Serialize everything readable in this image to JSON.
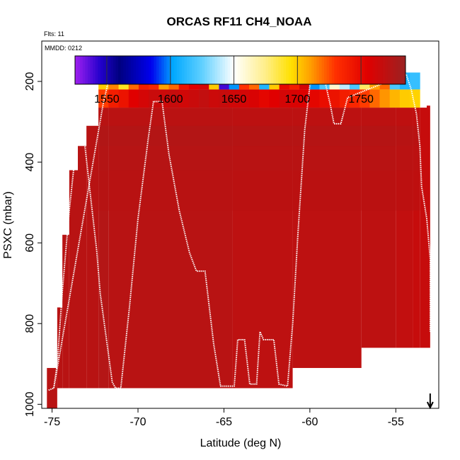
{
  "chart_data": {
    "type": "heatmap",
    "title": "ORCAS RF11 CH4_NOAA",
    "flights_label": "Flts: 11",
    "date_label": "MMDD: 0212",
    "xlabel": "Latitude (deg N)",
    "ylabel": "PSXC (mbar)",
    "xlim": [
      -75.6,
      -52.5
    ],
    "ylim": [
      1010,
      100
    ],
    "x_ticks": [
      -75,
      -70,
      -65,
      -60,
      -55
    ],
    "x_tick_labels": [
      "-75",
      "-70",
      "-65",
      "-60",
      "-55"
    ],
    "y_ticks": [
      200,
      400,
      600,
      800,
      1000
    ],
    "y_tick_labels": [
      "200",
      "400",
      "600",
      "800",
      "1000"
    ],
    "colorbar": {
      "range": [
        1525,
        1785
      ],
      "ticks": [
        1550,
        1600,
        1650,
        1700,
        1750
      ],
      "tick_labels": [
        "1550",
        "1600",
        "1650",
        "1700",
        "1750"
      ],
      "stops": [
        {
          "v": 1525,
          "c": "#a020f0"
        },
        {
          "v": 1545,
          "c": "#2200cc"
        },
        {
          "v": 1560,
          "c": "#000080"
        },
        {
          "v": 1585,
          "c": "#0000ee"
        },
        {
          "v": 1602,
          "c": "#00a8ff"
        },
        {
          "v": 1625,
          "c": "#60d0ff"
        },
        {
          "v": 1650,
          "c": "#ffffff"
        },
        {
          "v": 1675,
          "c": "#ffee88"
        },
        {
          "v": 1695,
          "c": "#ffe000"
        },
        {
          "v": 1710,
          "c": "#ffa000"
        },
        {
          "v": 1730,
          "c": "#ff3000"
        },
        {
          "v": 1755,
          "c": "#e00000"
        },
        {
          "v": 1785,
          "c": "#9a2222"
        }
      ]
    },
    "background_columns": [
      {
        "lat": [
          -75.3,
          -74.7
        ],
        "p": [
          910,
          1010
        ],
        "value": 1772
      },
      {
        "lat": [
          -74.7,
          -74.4
        ],
        "p": [
          760,
          960
        ],
        "value": 1772
      },
      {
        "lat": [
          -74.4,
          -74.0
        ],
        "p": [
          580,
          960
        ],
        "value": 1772
      },
      {
        "lat": [
          -74.0,
          -73.5
        ],
        "p": [
          420,
          960
        ],
        "value": 1772
      },
      {
        "lat": [
          -73.5,
          -73.0
        ],
        "p": [
          360,
          960
        ],
        "value": 1772
      },
      {
        "lat": [
          -73.0,
          -72.3
        ],
        "p": [
          310,
          960
        ],
        "value": 1772
      },
      {
        "lat": [
          -72.3,
          -71.7
        ],
        "p": [
          265,
          960
        ],
        "value": 1774
      },
      {
        "lat": [
          -71.7,
          -64.5
        ],
        "p": [
          265,
          960
        ],
        "value": 1772
      },
      {
        "lat": [
          -64.5,
          -61.0
        ],
        "p": [
          265,
          960
        ],
        "value": 1770
      },
      {
        "lat": [
          -61.0,
          -57.0
        ],
        "p": [
          265,
          910
        ],
        "value": 1770
      },
      {
        "lat": [
          -57.0,
          -55.0
        ],
        "p": [
          265,
          860
        ],
        "value": 1770
      },
      {
        "lat": [
          -55.0,
          -54.0
        ],
        "p": [
          265,
          860
        ],
        "value": 1768
      },
      {
        "lat": [
          -54.0,
          -53.6
        ],
        "p": [
          265,
          860
        ],
        "value": 1766
      },
      {
        "lat": [
          -53.6,
          -53.2
        ],
        "p": [
          265,
          860
        ],
        "value": 1766
      },
      {
        "lat": [
          -53.2,
          -53.0
        ],
        "p": [
          260,
          860
        ],
        "value": 1766
      }
    ],
    "band_rows": [
      {
        "p": [
          265,
          310
        ],
        "value": 1771
      },
      {
        "p": [
          310,
          360
        ],
        "value": 1776
      },
      {
        "p": [
          360,
          420
        ],
        "value": 1774
      },
      {
        "p": [
          420,
          520
        ],
        "value": 1772
      }
    ],
    "upper_band": {
      "lat_range": [
        -72.3,
        -53.6
      ],
      "row1_p": [
        220,
        265
      ],
      "row2_p": [
        178,
        220
      ],
      "row1_values": [
        1728,
        1740,
        1745,
        1755,
        1760,
        1765,
        1764,
        1766,
        1762,
        1765,
        1768,
        1764,
        1766,
        1762,
        1760,
        1758,
        1752,
        1755,
        1760,
        1758,
        1756,
        1752,
        1748,
        1745,
        1740,
        1735,
        1728,
        1720,
        1712,
        1705,
        1700,
        1698
      ],
      "row2_values": [
        1700,
        1715,
        1690,
        1720,
        1740,
        1735,
        1710,
        1720,
        1745,
        1755,
        1760,
        1700,
        1540,
        1600,
        1730,
        1720,
        1610,
        1700,
        1750,
        1740,
        1760,
        1600,
        1620,
        1660,
        1640,
        1620,
        1680,
        1710,
        1720,
        1620,
        1610,
        1615
      ]
    },
    "flight_track": [
      {
        "lat": -75.2,
        "p": 965
      },
      {
        "lat": -74.9,
        "p": 960
      },
      {
        "lat": -74.7,
        "p": 900
      },
      {
        "lat": -74.4,
        "p": 720
      },
      {
        "lat": -74.0,
        "p": 520
      },
      {
        "lat": -73.6,
        "p": 360
      },
      {
        "lat": -73.5,
        "p": 318
      },
      {
        "lat": -73.2,
        "p": 318
      },
      {
        "lat": -72.8,
        "p": 470
      },
      {
        "lat": -72.4,
        "p": 620
      },
      {
        "lat": -72.2,
        "p": 725
      },
      {
        "lat": -71.5,
        "p": 945
      },
      {
        "lat": -71.3,
        "p": 960
      },
      {
        "lat": -71.0,
        "p": 960
      },
      {
        "lat": -70.5,
        "p": 760
      },
      {
        "lat": -70.0,
        "p": 540
      },
      {
        "lat": -69.4,
        "p": 340
      },
      {
        "lat": -69.1,
        "p": 250
      },
      {
        "lat": -68.6,
        "p": 250
      },
      {
        "lat": -68.2,
        "p": 380
      },
      {
        "lat": -67.6,
        "p": 520
      },
      {
        "lat": -67.0,
        "p": 625
      },
      {
        "lat": -66.6,
        "p": 670
      },
      {
        "lat": -66.1,
        "p": 670
      },
      {
        "lat": -65.6,
        "p": 850
      },
      {
        "lat": -65.2,
        "p": 955
      },
      {
        "lat": -64.4,
        "p": 955
      },
      {
        "lat": -64.2,
        "p": 840
      },
      {
        "lat": -63.8,
        "p": 840
      },
      {
        "lat": -63.5,
        "p": 950
      },
      {
        "lat": -63.1,
        "p": 950
      },
      {
        "lat": -62.9,
        "p": 820
      },
      {
        "lat": -62.7,
        "p": 840
      },
      {
        "lat": -62.1,
        "p": 840
      },
      {
        "lat": -61.8,
        "p": 950
      },
      {
        "lat": -61.3,
        "p": 955
      },
      {
        "lat": -61.0,
        "p": 800
      },
      {
        "lat": -60.7,
        "p": 580
      },
      {
        "lat": -60.3,
        "p": 320
      },
      {
        "lat": -60.0,
        "p": 210
      },
      {
        "lat": -59.7,
        "p": 185
      },
      {
        "lat": -59.2,
        "p": 185
      },
      {
        "lat": -58.8,
        "p": 260
      },
      {
        "lat": -58.6,
        "p": 305
      },
      {
        "lat": -58.2,
        "p": 305
      },
      {
        "lat": -57.8,
        "p": 240
      },
      {
        "lat": -54.4,
        "p": 182
      },
      {
        "lat": -54.1,
        "p": 220
      },
      {
        "lat": -53.8,
        "p": 280
      },
      {
        "lat": -53.6,
        "p": 360
      },
      {
        "lat": -53.5,
        "p": 460
      },
      {
        "lat": -53.2,
        "p": 540
      },
      {
        "lat": -53.0,
        "p": 640
      },
      {
        "lat": -53.0,
        "p": 820
      }
    ],
    "ascent_lines": [
      [
        {
          "lat": -74.9,
          "p": 960
        },
        {
          "lat": -72.0,
          "p": 250
        },
        {
          "lat": -71.6,
          "p": 178
        }
      ],
      [
        {
          "lat": -71.6,
          "p": 178
        },
        {
          "lat": -67.0,
          "p": 178
        },
        {
          "lat": -66.6,
          "p": 180
        }
      ],
      [
        {
          "lat": -66.0,
          "p": 180
        },
        {
          "lat": -61.0,
          "p": 180
        },
        {
          "lat": -60.6,
          "p": 185
        }
      ],
      [
        {
          "lat": -57.2,
          "p": 182
        },
        {
          "lat": -54.4,
          "p": 182
        }
      ]
    ],
    "arrow_lat": -53.0
  }
}
